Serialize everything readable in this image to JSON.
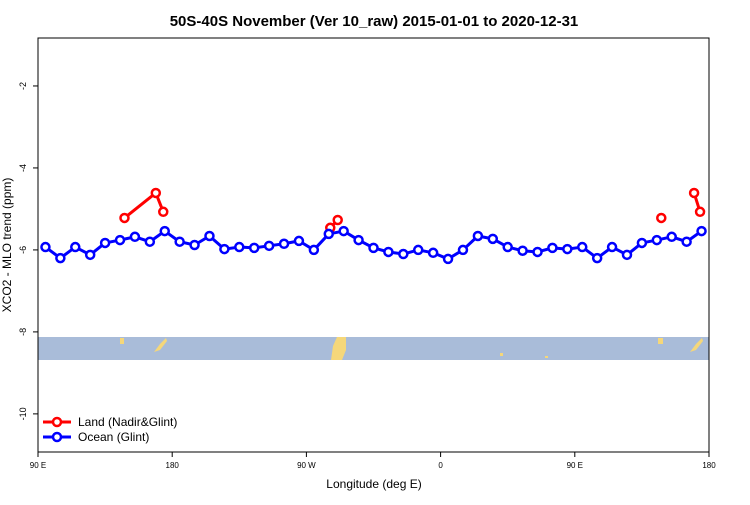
{
  "chart_data": {
    "type": "line",
    "title": "50S-40S November (Ver 10_raw)   2015-01-01 to 2020-12-31",
    "x_label": "Longitude (deg E)",
    "y_label": "XCO2 - MLO trend (ppm)",
    "xlim": [
      90,
      540
    ],
    "xticks": [
      {
        "value": 90,
        "label": "90 E"
      },
      180,
      {
        "value": 270,
        "label": "90 W"
      },
      {
        "value": 360,
        "label": "0"
      },
      {
        "value": 450,
        "label": "90 E"
      },
      {
        "value": 540,
        "label": "180"
      }
    ],
    "ylim": [
      -10.93,
      -0.83
    ],
    "yticks": [
      -10,
      -8,
      -6,
      -4,
      -2
    ],
    "legend": "bottom-left",
    "series": [
      {
        "name": "Land (Nadir&Glint)",
        "color": "#ff0000",
        "x": [
          148,
          169,
          174,
          230,
          286,
          291,
          400,
          508,
          520,
          530,
          534
        ],
        "values": [
          -5.22,
          -4.61,
          -5.07,
          null,
          -5.46,
          -5.27,
          null,
          -5.22,
          null,
          -4.61,
          -5.07
        ]
      },
      {
        "name": "Ocean (Glint)",
        "color": "#0000ff",
        "x": [
          95,
          105,
          115,
          125,
          135,
          145,
          155,
          165,
          175,
          185,
          195,
          205,
          215,
          225,
          235,
          245,
          255,
          265,
          275,
          285,
          295,
          305,
          315,
          325,
          335,
          345,
          355,
          365,
          375,
          385,
          395,
          405,
          415,
          425,
          435,
          445,
          455,
          465,
          475,
          485,
          495,
          505,
          515,
          525,
          535
        ],
        "values": [
          -5.93,
          -6.2,
          -5.93,
          -6.12,
          -5.83,
          -5.76,
          -5.68,
          -5.8,
          -5.54,
          -5.8,
          -5.88,
          -5.66,
          -5.98,
          -5.93,
          -5.95,
          -5.9,
          -5.85,
          -5.78,
          -6.0,
          -5.61,
          -5.54,
          -5.76,
          -5.95,
          -6.05,
          -6.1,
          -6.0,
          -6.07,
          -6.22,
          -6.0,
          -5.66,
          -5.73,
          -5.93,
          -6.02,
          -6.05,
          -5.95,
          -5.98,
          -5.93,
          -6.2,
          -5.93,
          -6.12,
          -5.83,
          -5.76,
          -5.68,
          -5.8,
          -5.54
        ]
      }
    ]
  }
}
